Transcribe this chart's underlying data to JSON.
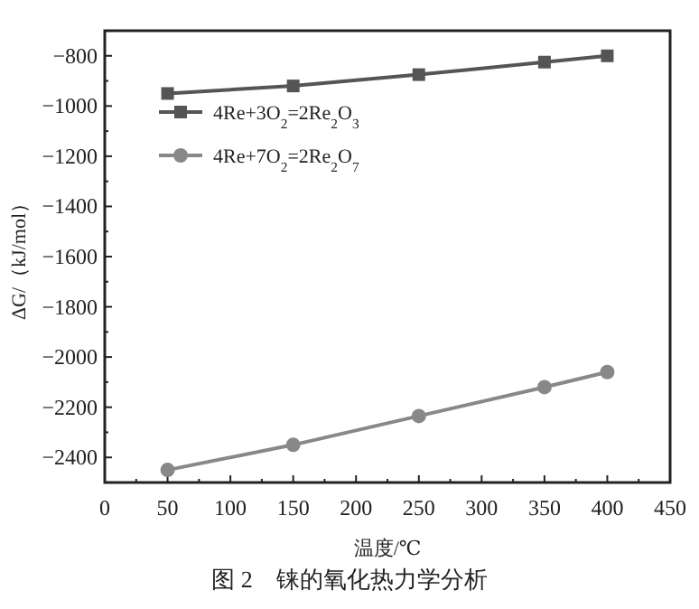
{
  "chart_data": {
    "type": "line",
    "xlabel": "温度/℃",
    "ylabel": "ΔG/（kJ/mol）",
    "annotations": [
      "图 2　铼的氧化热力学分析"
    ],
    "x": [
      50,
      150,
      250,
      350,
      400
    ],
    "series": [
      {
        "name": "4Re+3O$_{2}$=2Re$_{2}$O$_{3}$",
        "color": "#555555",
        "marker": "square",
        "values": [
          -950,
          -920,
          -875,
          -825,
          -800
        ]
      },
      {
        "name": "4Re+7O$_{2}$=2Re$_{2}$O$_{7}$",
        "color": "#888888",
        "marker": "circle",
        "values": [
          -2450,
          -2350,
          -2235,
          -2120,
          -2060
        ]
      }
    ],
    "xlim": [
      0,
      450
    ],
    "xticks": [
      0,
      50,
      100,
      150,
      200,
      250,
      300,
      350,
      400,
      450
    ],
    "ylim": [
      -2500,
      -700
    ],
    "yticks": [
      -2400,
      -2200,
      -2000,
      -1800,
      -1600,
      -1400,
      -1200,
      -1000,
      -800
    ],
    "grid": false,
    "legend": "top left",
    "line_style": "solid"
  }
}
